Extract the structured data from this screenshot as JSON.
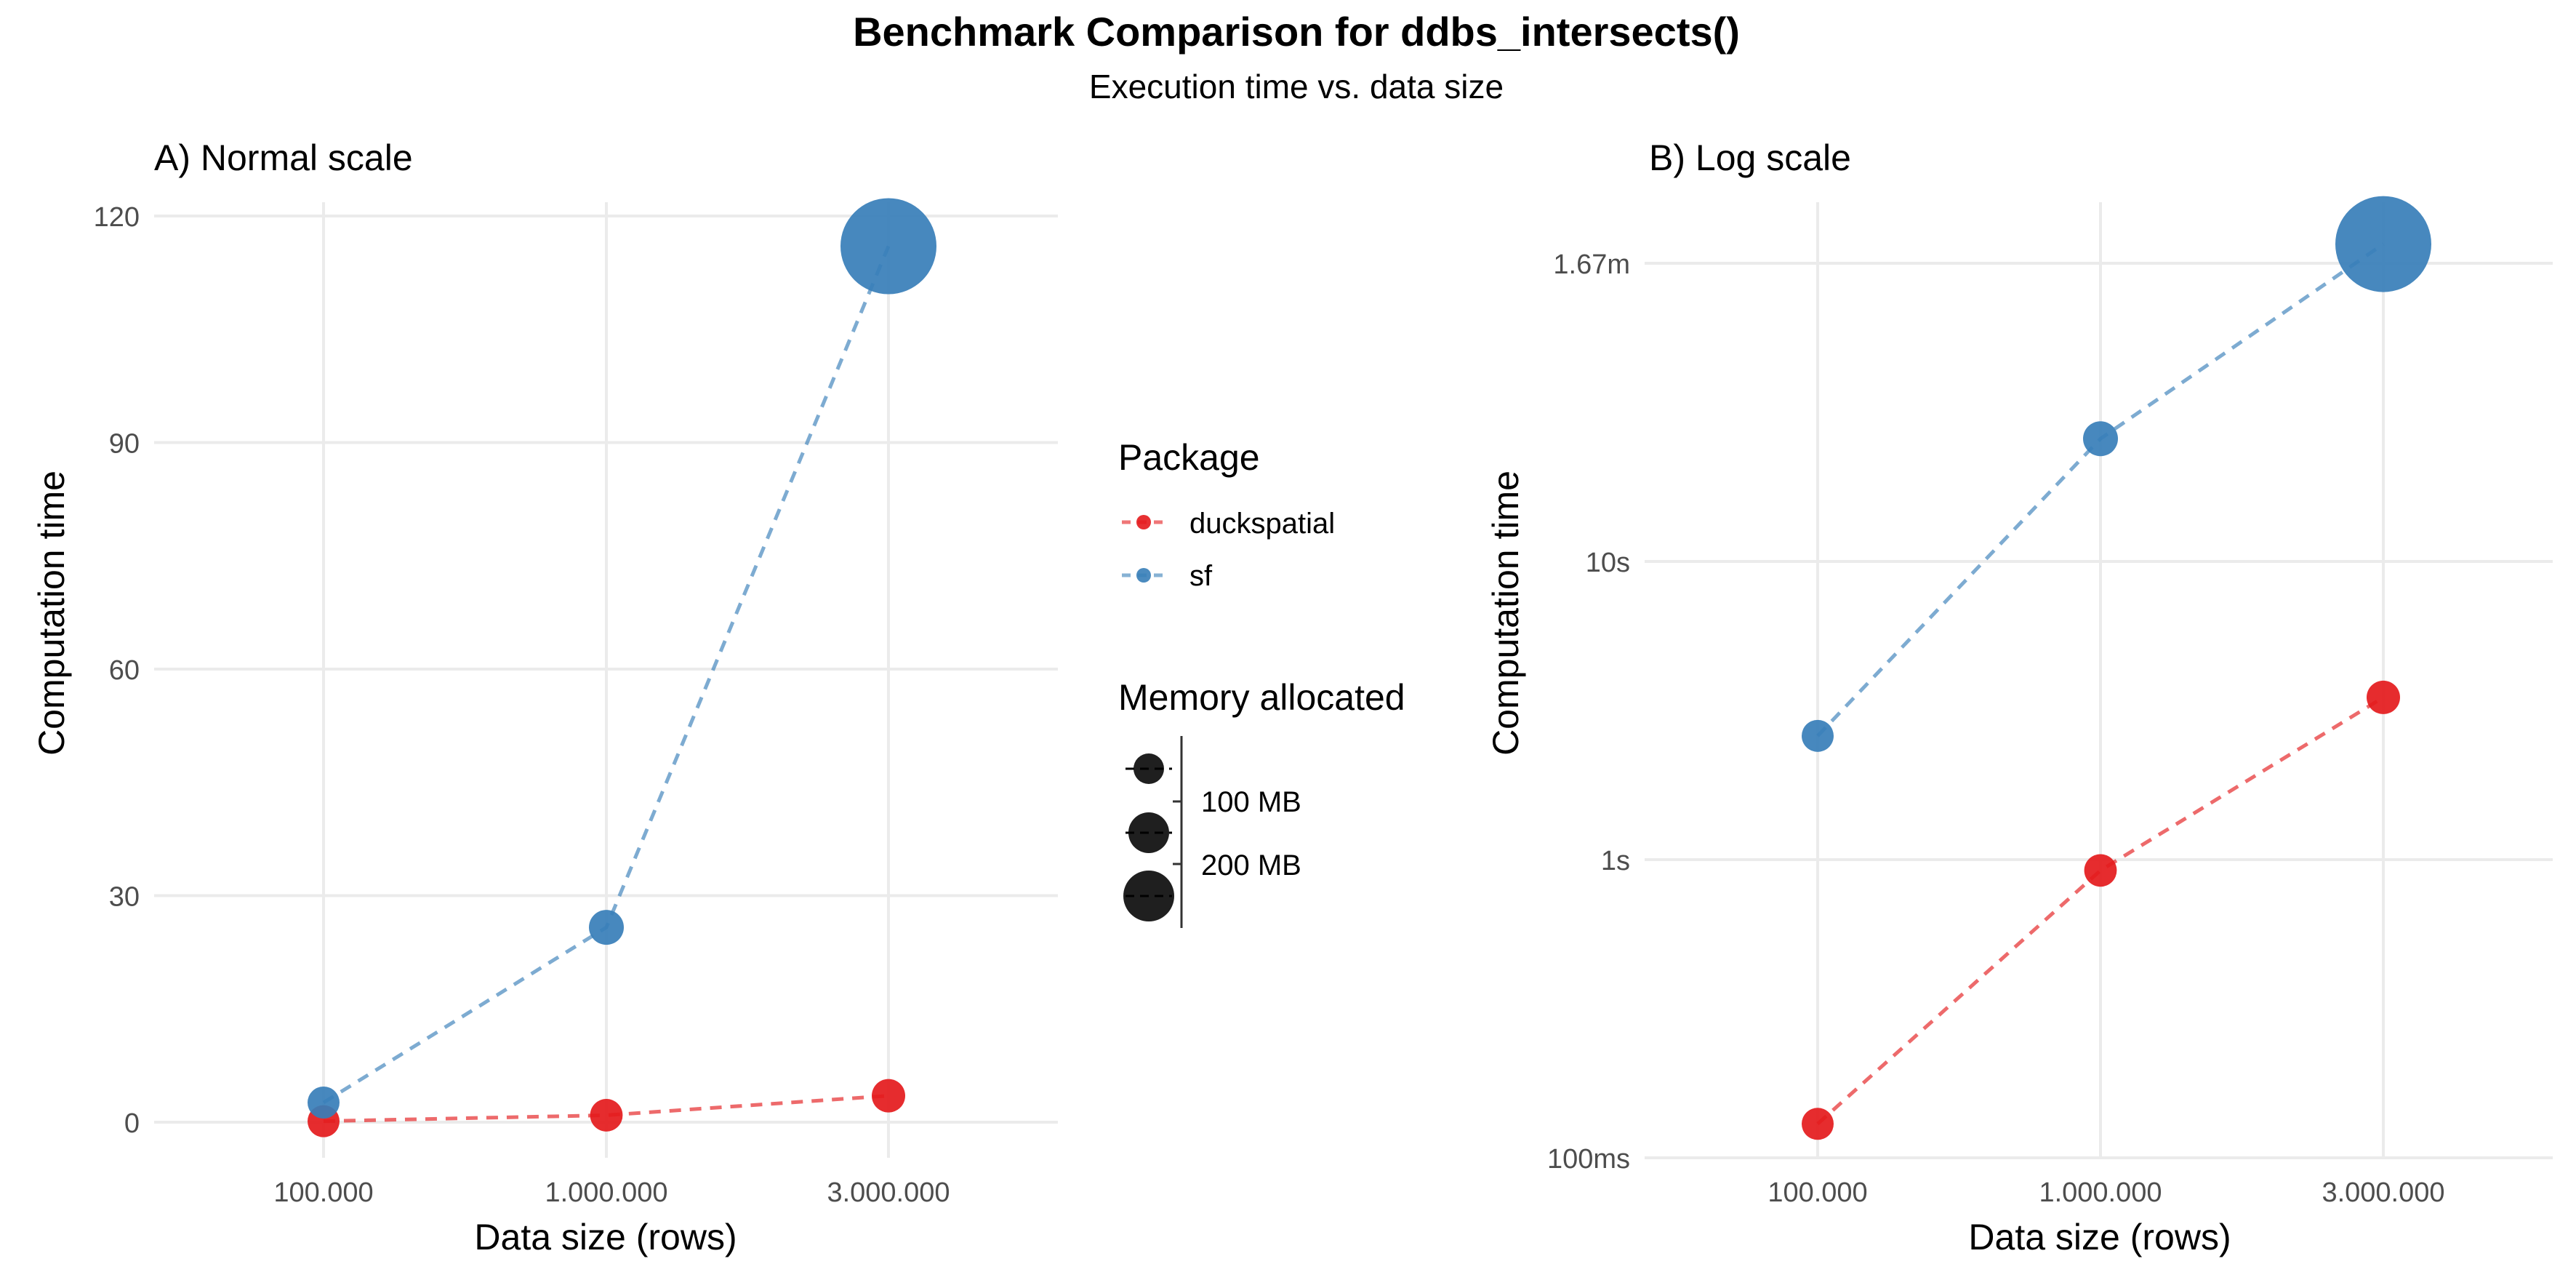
{
  "figure": {
    "title": "Benchmark Comparison for ddbs_intersects()",
    "subtitle": "Execution time vs. data size"
  },
  "legend": {
    "package_title": "Package",
    "packages": [
      {
        "name": "duckspatial",
        "color": "#E41A1C"
      },
      {
        "name": "sf",
        "color": "#377EB8"
      }
    ],
    "memory_title": "Memory allocated",
    "memory_labels": [
      "100 MB",
      "200 MB"
    ],
    "placement": "right of panel A"
  },
  "chart_data": [
    {
      "type": "line",
      "title": "A) Normal scale",
      "xlabel": "Data size (rows)",
      "ylabel": "Computation time",
      "x_scale": "categorical",
      "y_scale": "linear",
      "categories": [
        "100.000",
        "1.000.000",
        "3.000.000"
      ],
      "ylim": [
        0,
        120
      ],
      "yticks": [
        0,
        30,
        60,
        90,
        120
      ],
      "ytick_labels": [
        "0",
        "30",
        "60",
        "90",
        "120"
      ],
      "grid": true,
      "series": [
        {
          "name": "duckspatial",
          "color": "#E41A1C",
          "line": "dashed",
          "values": [
            0.13,
            0.92,
            3.5
          ],
          "memory_mb": [
            40,
            42,
            45
          ]
        },
        {
          "name": "sf",
          "color": "#377EB8",
          "line": "dashed",
          "values": [
            2.6,
            25.8,
            116
          ],
          "memory_mb": [
            40,
            50,
            260
          ]
        }
      ]
    },
    {
      "type": "line",
      "title": "B) Log scale",
      "xlabel": "Data size (rows)",
      "ylabel": "Computation time",
      "x_scale": "categorical",
      "y_scale": "log",
      "categories": [
        "100.000",
        "1.000.000",
        "3.000.000"
      ],
      "ylim": [
        0.1,
        120
      ],
      "yticks": [
        0.1,
        1,
        10,
        100
      ],
      "ytick_labels": [
        "100ms",
        "1s",
        "10s",
        "1.67m"
      ],
      "grid": true,
      "series": [
        {
          "name": "duckspatial",
          "color": "#E41A1C",
          "line": "dashed",
          "values": [
            0.13,
            0.92,
            3.5
          ],
          "memory_mb": [
            40,
            42,
            45
          ]
        },
        {
          "name": "sf",
          "color": "#377EB8",
          "line": "dashed",
          "values": [
            2.6,
            25.8,
            116
          ],
          "memory_mb": [
            40,
            50,
            260
          ]
        }
      ]
    }
  ]
}
